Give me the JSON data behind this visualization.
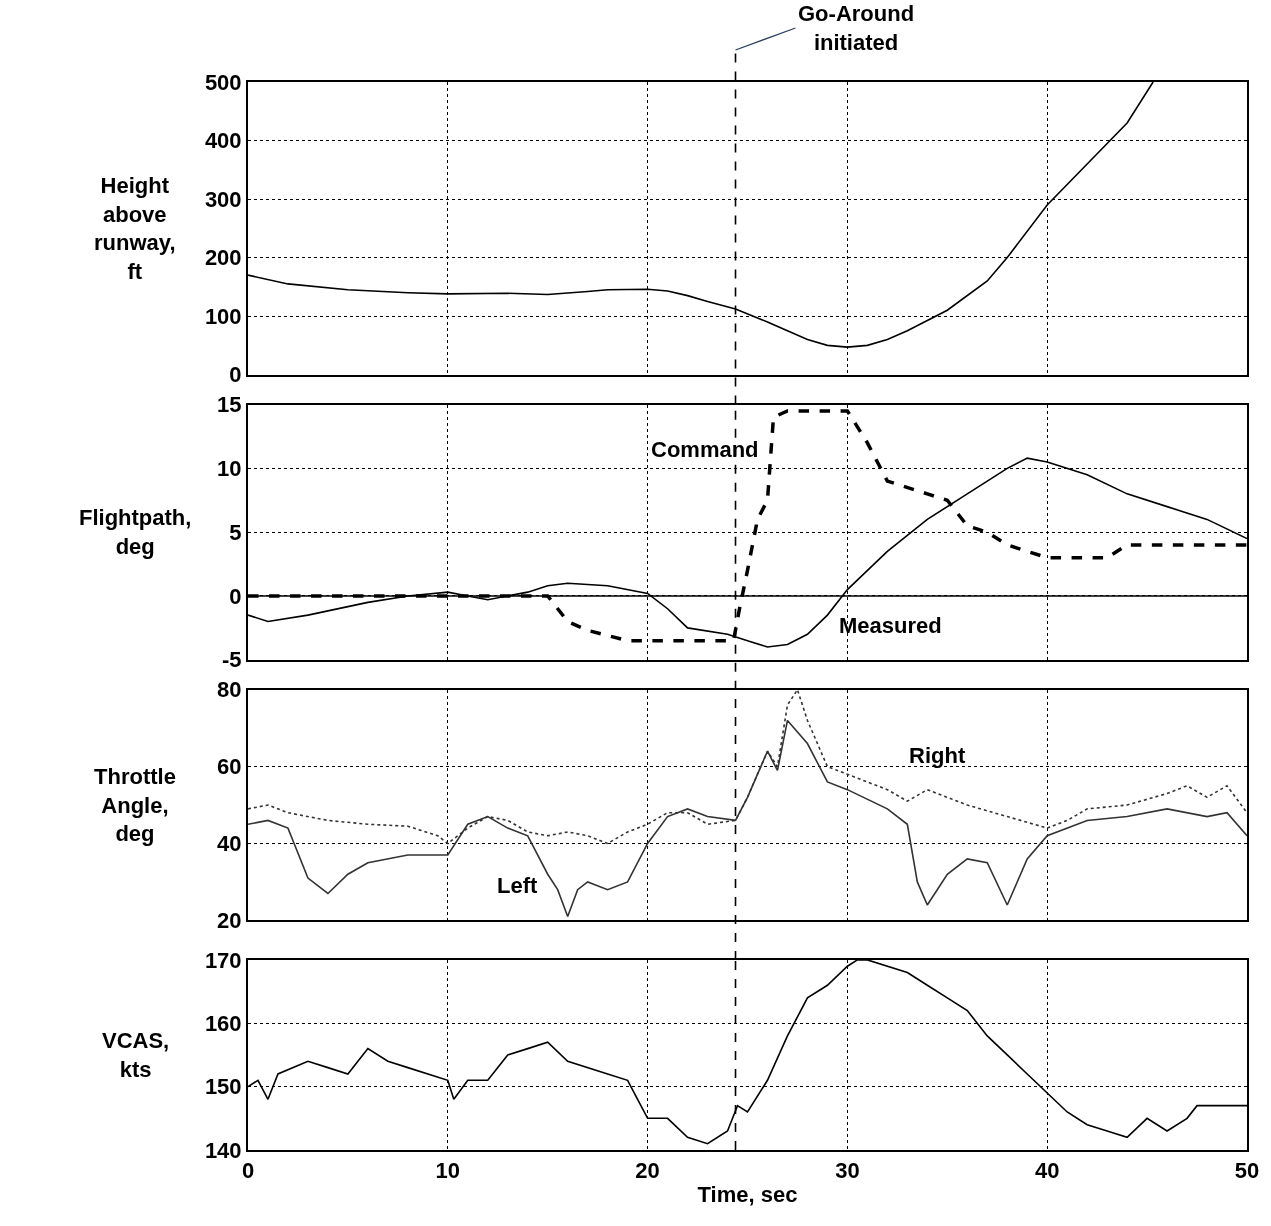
{
  "chart_data": [
    {
      "type": "line",
      "ylabel": "Height\nabove\nrunway,\nft",
      "xlim": [
        0,
        50
      ],
      "xticks": [
        0,
        10,
        20,
        30,
        40,
        50
      ],
      "ylim": [
        0,
        500
      ],
      "yticks": [
        0,
        100,
        200,
        300,
        400,
        500
      ],
      "grid": true,
      "tick_labels": "y",
      "ref_lines": [
        {
          "axis": "x",
          "value": 24.4,
          "label": "Go-Around\ninitiated",
          "line_style": "dashed",
          "color": "#000000"
        }
      ],
      "series": [
        {
          "color": "#000000",
          "line_style": "solid",
          "x": [
            0,
            2,
            5,
            8,
            10,
            13,
            15,
            17,
            18,
            20,
            21,
            22,
            23,
            24.4,
            26,
            27,
            28,
            29,
            30,
            31,
            32,
            33,
            35,
            37,
            38,
            40,
            42,
            44,
            45.3
          ],
          "values": [
            170,
            155,
            145,
            140,
            138,
            139,
            137,
            142,
            145,
            146,
            143,
            135,
            125,
            112,
            90,
            75,
            60,
            50,
            47,
            50,
            60,
            75,
            110,
            160,
            200,
            290,
            360,
            430,
            500
          ]
        }
      ]
    },
    {
      "type": "line",
      "ylabel": "Flightpath,\ndeg",
      "xlim": [
        0,
        50
      ],
      "xticks": [
        0,
        10,
        20,
        30,
        40,
        50
      ],
      "ylim": [
        -5,
        15
      ],
      "yticks": [
        -5,
        0,
        5,
        10,
        15
      ],
      "grid": true,
      "tick_labels": "y",
      "ref_lines": [
        {
          "axis": "x",
          "value": 24.4,
          "line_style": "dashed",
          "color": "#000000"
        },
        {
          "axis": "y",
          "value": 0,
          "line_style": "solid",
          "color": "#000000"
        }
      ],
      "series": [
        {
          "name": "Command",
          "color": "#000000",
          "line_style": "dashed",
          "x": [
            0,
            15,
            15.5,
            16,
            17,
            19,
            22,
            24.3,
            24.6,
            25,
            25.5,
            26,
            26.3,
            27,
            30,
            31,
            32,
            34,
            35,
            36,
            37,
            38,
            39,
            40,
            43,
            44,
            50
          ],
          "values": [
            0,
            0,
            -1,
            -2,
            -2.7,
            -3.5,
            -3.5,
            -3.5,
            -1,
            2,
            6,
            7.5,
            14,
            14.5,
            14.5,
            12,
            9,
            8,
            7.5,
            5.5,
            5,
            4,
            3.5,
            3,
            3,
            4,
            4
          ]
        },
        {
          "name": "Measured",
          "color": "#000000",
          "line_style": "solid",
          "x": [
            0,
            1,
            3,
            6,
            8,
            10,
            11,
            12,
            14,
            15,
            16,
            18,
            20,
            21,
            22,
            24,
            25,
            26,
            27,
            28,
            29,
            30,
            32,
            34,
            36,
            38,
            39,
            40,
            42,
            44,
            46,
            48,
            50
          ],
          "values": [
            -1.5,
            -2,
            -1.5,
            -0.5,
            0,
            0.3,
            0,
            -0.3,
            0.3,
            0.8,
            1,
            0.8,
            0.2,
            -1,
            -2.5,
            -3,
            -3.5,
            -4,
            -3.8,
            -3,
            -1.5,
            0.5,
            3.5,
            6,
            8,
            10,
            10.8,
            10.5,
            9.5,
            8,
            7,
            6,
            4.5
          ]
        }
      ]
    },
    {
      "type": "line",
      "ylabel": "Throttle\nAngle,\ndeg",
      "xlim": [
        0,
        50
      ],
      "xticks": [
        0,
        10,
        20,
        30,
        40,
        50
      ],
      "ylim": [
        20,
        80
      ],
      "yticks": [
        20,
        40,
        60,
        80
      ],
      "grid": true,
      "tick_labels": "y",
      "ref_lines": [
        {
          "axis": "x",
          "value": 24.4,
          "line_style": "dashed",
          "color": "#000000"
        }
      ],
      "series": [
        {
          "name": "Right",
          "color": "#333333",
          "line_style": "dotted",
          "x": [
            0,
            1,
            2,
            4,
            6,
            8,
            9.5,
            10,
            11,
            12,
            13,
            14,
            15,
            16,
            17,
            18,
            19,
            20,
            21,
            22,
            23,
            24.4,
            25,
            26,
            26.5,
            27,
            27.5,
            28,
            29,
            30,
            31,
            32,
            33,
            34,
            35,
            36,
            38,
            40,
            41,
            42,
            44,
            46,
            47,
            48,
            49,
            50
          ],
          "values": [
            49,
            50,
            48,
            46,
            45,
            44.5,
            42,
            40,
            44,
            47,
            46,
            43,
            42,
            43,
            42,
            40,
            43,
            45,
            48,
            48,
            45,
            46,
            52,
            64,
            60,
            76,
            80,
            72,
            60,
            58,
            56,
            54,
            51,
            54,
            52,
            50,
            47,
            44,
            46,
            49,
            50,
            53,
            55,
            52,
            55,
            48
          ]
        },
        {
          "name": "Left",
          "color": "#333333",
          "line_style": "solid",
          "x": [
            0,
            1,
            2,
            3,
            4,
            5,
            6,
            8,
            9,
            10,
            11,
            12,
            13,
            14,
            15,
            15.5,
            16,
            16.5,
            17,
            18,
            19,
            20,
            21,
            22,
            23,
            24.4,
            25,
            26,
            26.5,
            27,
            28,
            29,
            30,
            32,
            33,
            33.5,
            34,
            35,
            36,
            37,
            38,
            39,
            40,
            42,
            44,
            46,
            48,
            49,
            50
          ],
          "values": [
            45,
            46,
            44,
            31,
            27,
            32,
            35,
            37,
            37,
            37,
            45,
            47,
            44,
            42,
            32,
            28,
            21,
            28,
            30,
            28,
            30,
            40,
            47,
            49,
            47,
            46,
            52,
            64,
            59,
            72,
            66,
            56,
            54,
            49,
            45,
            30,
            24,
            32,
            36,
            35,
            24,
            36,
            42,
            46,
            47,
            49,
            47,
            48,
            42
          ]
        }
      ]
    },
    {
      "type": "line",
      "ylabel": "VCAS,\nkts",
      "xlabel": "Time, sec",
      "xlim": [
        0,
        50
      ],
      "xticks": [
        0,
        10,
        20,
        30,
        40,
        50
      ],
      "ylim": [
        140,
        170
      ],
      "yticks": [
        140,
        150,
        160,
        170
      ],
      "grid": true,
      "ref_lines": [
        {
          "axis": "x",
          "value": 24.4,
          "line_style": "dashed",
          "color": "#000000"
        }
      ],
      "series": [
        {
          "color": "#000000",
          "line_style": "solid",
          "x": [
            0,
            0.5,
            1,
            1.5,
            3,
            4,
            5,
            6,
            7,
            8,
            10,
            10.3,
            11,
            12,
            13,
            14,
            15,
            16,
            18,
            19,
            19.5,
            20,
            21,
            22,
            23,
            24,
            24.5,
            25,
            26,
            27,
            28,
            29,
            30,
            30.5,
            31,
            33,
            34,
            35,
            36,
            37,
            38,
            39,
            40,
            41,
            42,
            43,
            44,
            45,
            46,
            47,
            47.5,
            49,
            50
          ],
          "values": [
            150,
            151,
            148,
            152,
            154,
            153,
            152,
            156,
            154,
            153,
            151,
            148,
            151,
            151,
            155,
            156,
            157,
            154,
            152,
            151,
            148,
            145,
            145,
            142,
            141,
            143,
            147,
            146,
            151,
            158,
            164,
            166,
            169,
            170,
            170,
            168,
            166,
            164,
            162,
            158,
            155,
            152,
            149,
            146,
            144,
            143,
            142,
            145,
            143,
            145,
            147,
            147,
            147
          ]
        }
      ]
    }
  ]
}
